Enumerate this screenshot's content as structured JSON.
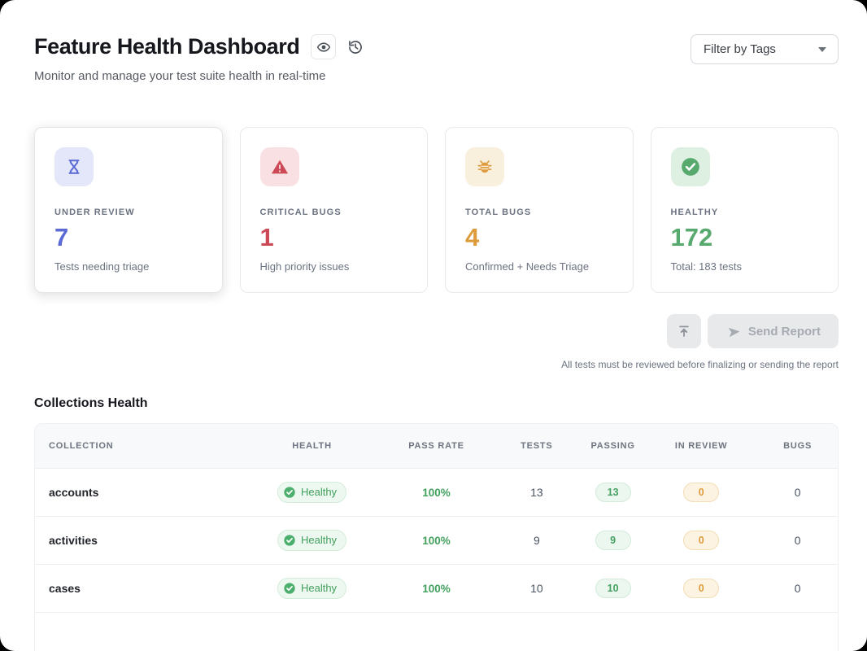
{
  "page": {
    "title": "Feature Health Dashboard",
    "subtitle": "Monitor and manage your test suite health in real-time"
  },
  "header": {
    "filter_dropdown_label": "Filter by Tags",
    "icons": [
      "eye-icon",
      "history-icon"
    ]
  },
  "stats": [
    {
      "label": "UNDER REVIEW",
      "value": "7",
      "sub": "Tests needing triage",
      "icon": "hourglass-icon",
      "accent": "#5b6ad4"
    },
    {
      "label": "CRITICAL BUGS",
      "value": "1",
      "sub": "High priority issues",
      "icon": "warning-triangle-icon",
      "accent": "#cc4a57"
    },
    {
      "label": "TOTAL BUGS",
      "value": "4",
      "sub": "Confirmed + Needs Triage",
      "icon": "bug-icon",
      "accent": "#de9b3c"
    },
    {
      "label": "HEALTHY",
      "value": "172",
      "sub": "Total: 183 tests",
      "icon": "check-circle-icon",
      "accent": "#57a96e"
    }
  ],
  "actions": {
    "send_report_label": "Send Report",
    "note": "All tests must be reviewed before finalizing or sending the report"
  },
  "collections": {
    "heading": "Collections Health",
    "columns": [
      "COLLECTION",
      "HEALTH",
      "PASS RATE",
      "TESTS",
      "PASSING",
      "IN REVIEW",
      "BUGS"
    ],
    "rows": [
      {
        "collection": "accounts",
        "health": "Healthy",
        "pass_rate": "100%",
        "pass_pct": 100,
        "tests": "13",
        "passing": "13",
        "in_review": "0",
        "bugs": "0"
      },
      {
        "collection": "activities",
        "health": "Healthy",
        "pass_rate": "100%",
        "pass_pct": 100,
        "tests": "9",
        "passing": "9",
        "in_review": "0",
        "bugs": "0"
      },
      {
        "collection": "cases",
        "health": "Healthy",
        "pass_rate": "100%",
        "pass_pct": 100,
        "tests": "10",
        "passing": "10",
        "in_review": "0",
        "bugs": "0"
      }
    ]
  },
  "colors": {
    "indigo": "#5b6ad4",
    "red": "#cc4a57",
    "orange": "#de9b3c",
    "green": "#4caf6e",
    "badge_green_bg": "#edf8f0",
    "pill_orange_bg": "#fdf3e2",
    "table_header_bg": "#f8f9fb"
  }
}
